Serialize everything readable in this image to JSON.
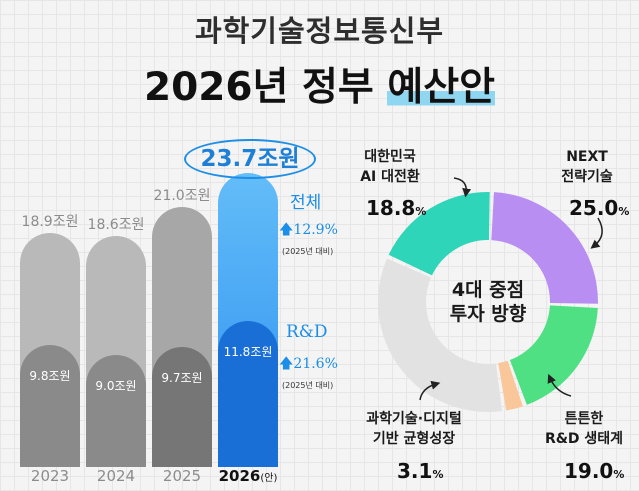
{
  "title": {
    "ministry": "과학기술정보통신부",
    "headline_part1": "2026년 정부 ",
    "headline_part2": "예산안"
  },
  "chart_data": [
    {
      "type": "bar",
      "categories": [
        "2023",
        "2024",
        "2025",
        "2026"
      ],
      "category_suffix_2026": "(안)",
      "series": [
        {
          "values": [
            18.9,
            18.6,
            21.0,
            23.7
          ],
          "labels": [
            "18.9조원",
            "18.6조원",
            "21.0조원",
            "23.7조원"
          ]
        },
        {
          "values": [
            9.8,
            9.0,
            9.7,
            11.8
          ],
          "labels": [
            "9.8조원",
            "9.0조원",
            "9.7조원",
            "11.8조원"
          ]
        }
      ],
      "annotations": {
        "total_label": "전체",
        "total_growth": "12.9%",
        "total_basis": "(2025년 대비)",
        "rnd_label": "R&D",
        "rnd_growth": "21.6%",
        "rnd_basis": "(2025년 대비)"
      }
    },
    {
      "type": "pie",
      "center_label_line1": "4대 중점",
      "center_label_line2": "투자 방향",
      "segments": [
        {
          "label_line1": "NEXT",
          "label_line2": "전략기술",
          "value": 25.0,
          "display": "25.0",
          "color": "#b88ef2"
        },
        {
          "label_line1": "튼튼한",
          "label_line2": "R&D 생태계",
          "value": 19.0,
          "display": "19.0",
          "color": "#4fe084"
        },
        {
          "label_line1": "과학기술·디지털",
          "label_line2": "기반 균형성장",
          "value": 3.1,
          "display": "3.1",
          "color": "#f9c79a"
        },
        {
          "label_line1": "",
          "label_line2": "",
          "value": 34.1,
          "display": "",
          "color": "#e2e2e2"
        },
        {
          "label_line1": "대한민국",
          "label_line2": "AI 대전환",
          "value": 18.8,
          "display": "18.8",
          "color": "#2fd5b8"
        }
      ],
      "percent_sign": "%"
    }
  ]
}
